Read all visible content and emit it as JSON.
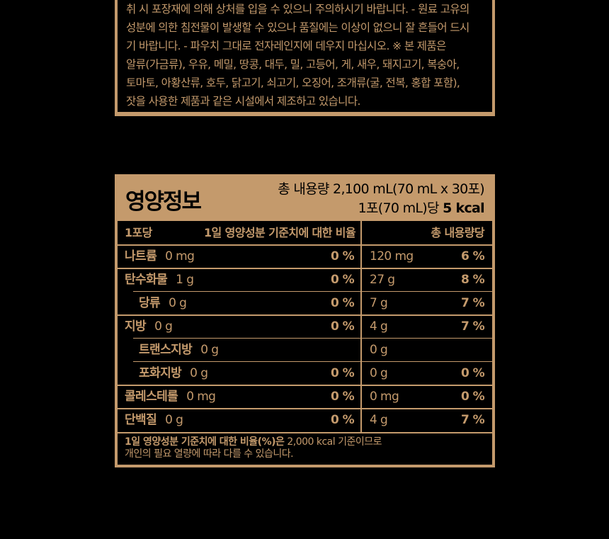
{
  "notice": {
    "lines": [
      "취 시 포장재에 의해 상처를 입을 수 있으니 주의하시기 바랍니다. - 원료 고유의",
      "성분에 의한 침전물이 발생할 수 있으나 품질에는 이상이 없으니 잘 흔들어 드시",
      "기 바랍니다. - 파우치 그대로 전자레인지에 데우지 마십시오.  ※ 본 제품은",
      "알류(가금류), 우유, 메밀, 땅콩, 대두, 밀, 고등어, 게, 새우, 돼지고기, 복숭아,",
      "토마토, 아황산류, 호두, 닭고기, 쇠고기, 오징어, 조개류(굴, 전복, 홍합 포함),",
      "잣을 사용한 제품과 같은 시설에서 제조하고 있습니다."
    ]
  },
  "nutrition": {
    "title": "영양정보",
    "total_volume": "총 내용량 2,100 mL(70 mL x 30포)",
    "per_serving_prefix": "1포(70 mL)당 ",
    "per_serving_kcal": "5 kcal",
    "header": {
      "per_pack": "1포당",
      "daily_ratio": "1일 영양성분 기준치에 대한 비율",
      "per_total": "총 내용량당"
    },
    "rows": [
      {
        "name": "나트륨",
        "amount": "0 mg",
        "pct": "0 %",
        "total_amount": "120 mg",
        "total_pct": "6 %"
      },
      {
        "name": "탄수화물",
        "amount": "1 g",
        "pct": "0 %",
        "total_amount": "27 g",
        "total_pct": "8 %"
      },
      {
        "name": "당류",
        "amount": "0 g",
        "pct": "0 %",
        "total_amount": "7 g",
        "total_pct": "7 %"
      },
      {
        "name": "지방",
        "amount": "0 g",
        "pct": "0 %",
        "total_amount": "4 g",
        "total_pct": "7 %"
      },
      {
        "name": "트랜스지방",
        "amount": "0 g",
        "pct": "",
        "total_amount": "0 g",
        "total_pct": ""
      },
      {
        "name": "포화지방",
        "amount": "0 g",
        "pct": "0 %",
        "total_amount": "0 g",
        "total_pct": "0 %"
      },
      {
        "name": "콜레스테롤",
        "amount": "0 mg",
        "pct": "0 %",
        "total_amount": "0 mg",
        "total_pct": "0 %"
      },
      {
        "name": "단백질",
        "amount": "0 g",
        "pct": "0 %",
        "total_amount": "4 g",
        "total_pct": "7 %"
      }
    ],
    "footnote_bold": "1일 영양성분 기준치에 대한 비율(%)은",
    "footnote_rest": " 2,000 kcal 기준이므로",
    "footnote_line2": "개인의 필요 열량에 따라 다를 수 있습니다."
  },
  "colors": {
    "accent": "#c49a6c",
    "background": "#000000"
  }
}
